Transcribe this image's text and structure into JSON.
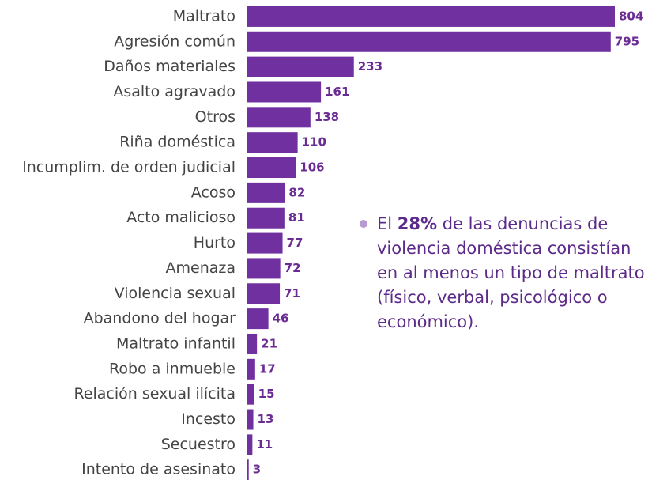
{
  "chart_data": {
    "type": "barh",
    "color": "#7030a0",
    "categories": [
      "Maltrato",
      "Agresión común",
      "Daños materiales",
      "Asalto agravado",
      "Otros",
      "Riña doméstica",
      "Incumplim. de orden judicial",
      "Acoso",
      "Acto malicioso",
      "Hurto",
      "Amenaza",
      "Violencia sexual",
      "Abandono del hogar",
      "Maltrato infantil",
      "Robo a inmueble",
      "Relación sexual ilícita",
      "Incesto",
      "Secuestro",
      "Intento de asesinato"
    ],
    "values": [
      804,
      795,
      233,
      161,
      138,
      110,
      106,
      82,
      81,
      77,
      72,
      71,
      46,
      21,
      17,
      15,
      13,
      11,
      3
    ],
    "annotation_parts": [
      "El ",
      "28%",
      " de las denuncias de violencia doméstica consistían en al menos un tipo de maltrato (físico, verbal, psicológico o económico)."
    ]
  }
}
